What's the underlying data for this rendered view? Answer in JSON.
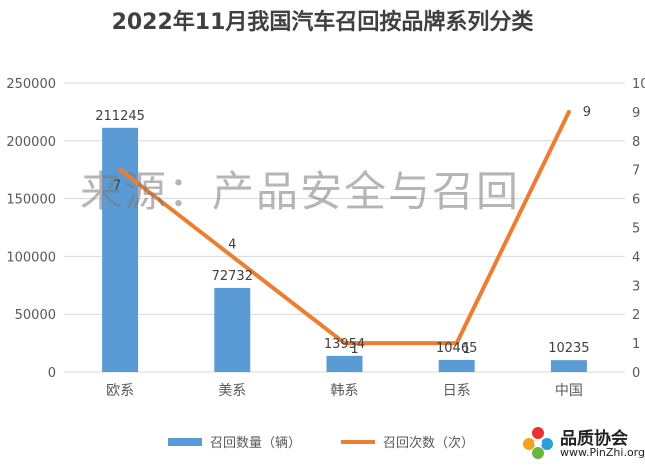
{
  "chart_data": {
    "type": "bar",
    "title": "2022年11月我国汽车召回按品牌系列分类",
    "categories": [
      "欧系",
      "美系",
      "韩系",
      "日系",
      "中国"
    ],
    "series": [
      {
        "name": "召回数量（辆）",
        "type": "bar",
        "axis": "left",
        "color": "#5b9bd5",
        "values": [
          211245,
          72732,
          13954,
          10465,
          10235
        ]
      },
      {
        "name": "召回次数（次）",
        "type": "line",
        "axis": "right",
        "color": "#ed7d31",
        "values": [
          7,
          4,
          1,
          1,
          9
        ]
      }
    ],
    "y_left": {
      "min": 0,
      "max": 250000,
      "ticks": [
        0,
        50000,
        100000,
        150000,
        200000,
        250000
      ]
    },
    "y_right": {
      "min": 0,
      "max": 10,
      "ticks": [
        0,
        1,
        2,
        3,
        4,
        5,
        6,
        7,
        8,
        9,
        10
      ]
    },
    "grid": true,
    "legend": "bottom"
  },
  "watermark": "来源：产品安全与召回",
  "logo": {
    "name": "品质协会",
    "url": "www.PinZhi.org"
  }
}
